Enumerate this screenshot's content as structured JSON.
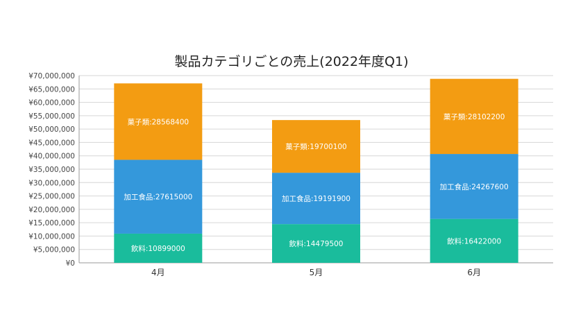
{
  "chart_data": {
    "type": "bar",
    "stacked": true,
    "title": "製品カテゴリごとの売上(2022年度Q1)",
    "categories": [
      "4月",
      "5月",
      "6月"
    ],
    "series": [
      {
        "name": "飲料",
        "values": [
          10899000,
          14479500,
          16422000
        ],
        "color": "#1abc9c",
        "labels": [
          "飲料:10899000",
          "飲料:14479500",
          "飲料:16422000"
        ]
      },
      {
        "name": "加工食品",
        "values": [
          27615000,
          19191900,
          24267600
        ],
        "color": "#3498db",
        "labels": [
          "加工食品:27615000",
          "加工食品:19191900",
          "加工食品:24267600"
        ]
      },
      {
        "name": "菓子類",
        "values": [
          28568400,
          19700100,
          28102200
        ],
        "color": "#f39c12",
        "labels": [
          "菓子類:28568400",
          "菓子類:19700100",
          "菓子類:28102200"
        ]
      }
    ],
    "ylim": [
      0,
      70000000
    ],
    "yticks": [
      0,
      5000000,
      10000000,
      15000000,
      20000000,
      25000000,
      30000000,
      35000000,
      40000000,
      45000000,
      50000000,
      55000000,
      60000000,
      65000000,
      70000000
    ],
    "ytick_labels": [
      "¥0",
      "¥5,000,000",
      "¥10,000,000",
      "¥15,000,000",
      "¥20,000,000",
      "¥25,000,000",
      "¥30,000,000",
      "¥35,000,000",
      "¥40,000,000",
      "¥45,000,000",
      "¥50,000,000",
      "¥55,000,000",
      "¥60,000,000",
      "¥65,000,000",
      "¥70,000,000"
    ],
    "grid": true,
    "gridline_color": "#d6d6d6"
  }
}
